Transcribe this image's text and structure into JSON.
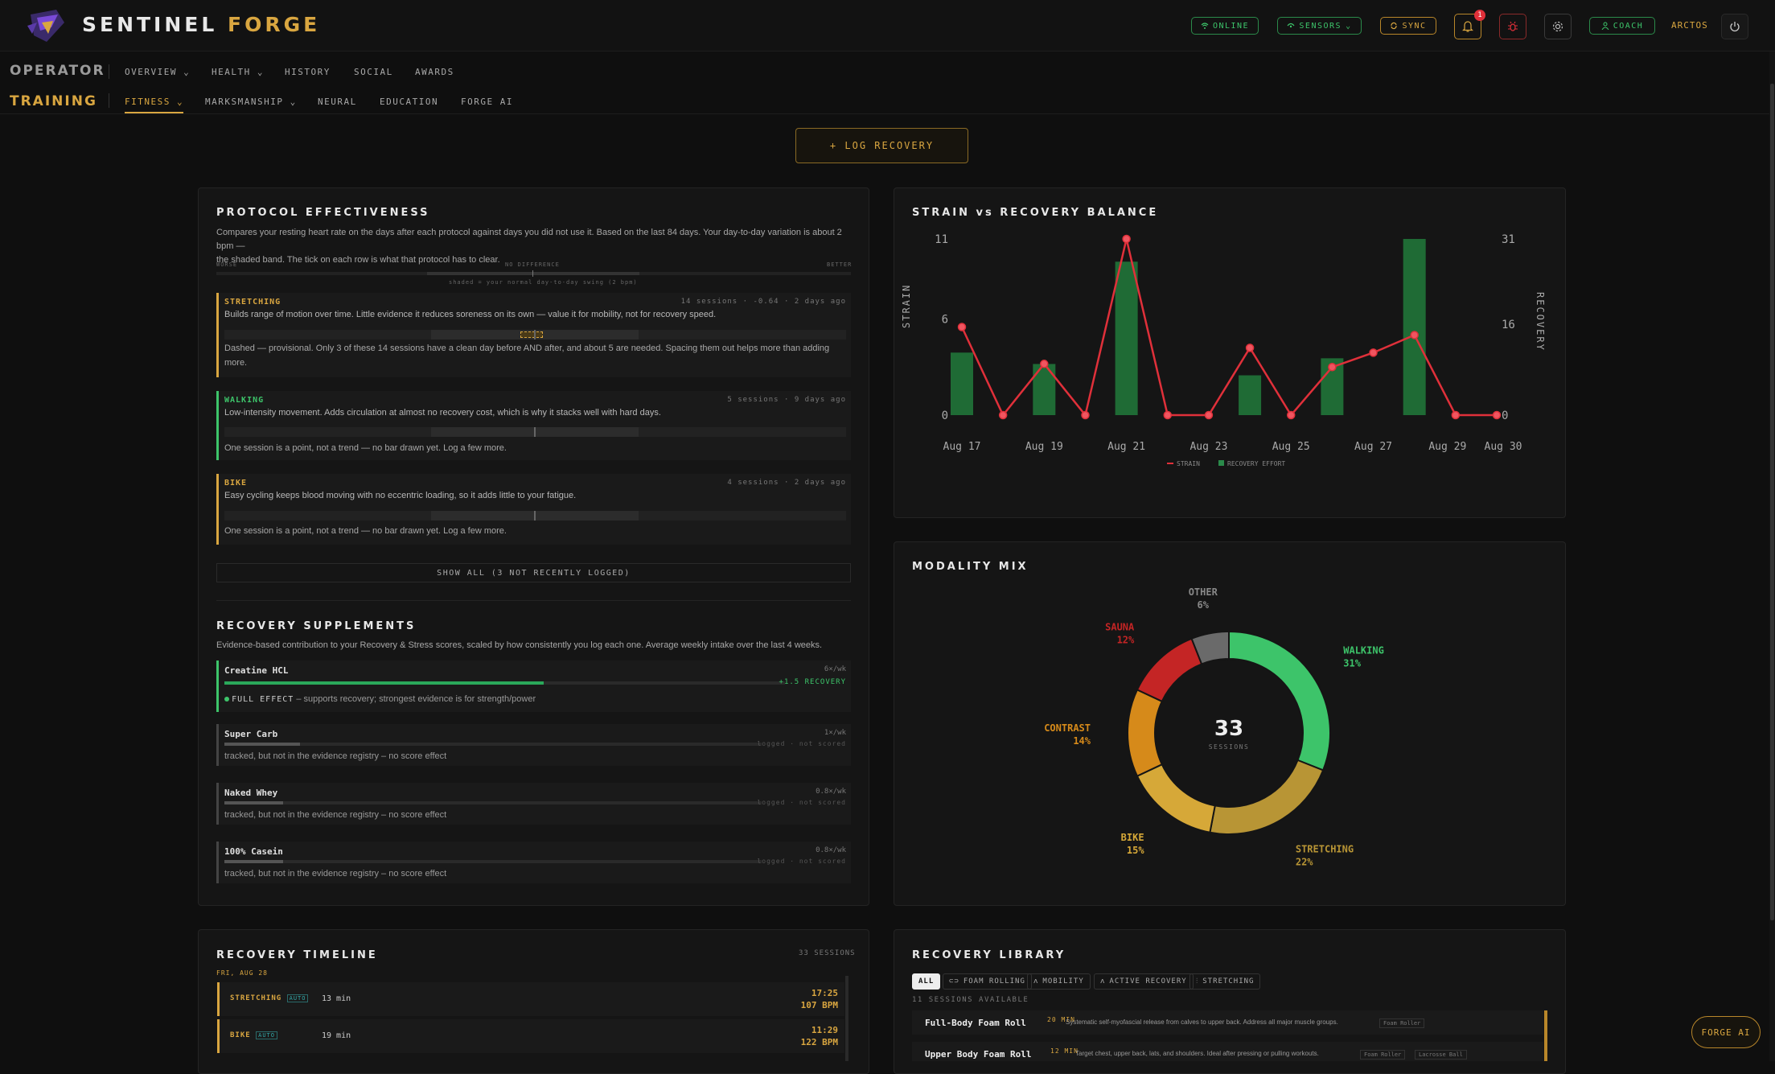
{
  "app": {
    "name_a": "SENTINEL",
    "name_b": "FORGE"
  },
  "status": {
    "online": "ONLINE",
    "sensors": "SENSORS",
    "sync": "SYNC",
    "notif_count": "1",
    "coach": "COACH",
    "user": "ARCTOS"
  },
  "nav1": {
    "section": "OPERATOR",
    "items": [
      "OVERVIEW",
      "HEALTH",
      "HISTORY",
      "SOCIAL",
      "AWARDS"
    ]
  },
  "nav2": {
    "section": "TRAINING",
    "items": [
      "FITNESS",
      "MARKSMANSHIP",
      "NEURAL",
      "EDUCATION",
      "FORGE AI"
    ]
  },
  "log_button": "+ LOG RECOVERY",
  "protocol": {
    "title": "PROTOCOL EFFECTIVENESS",
    "desc1": "Compares your resting heart rate on the days after each protocol against days you did not use it. Based on the last 84 days. Your day-to-day variation is about 2 bpm —",
    "desc2": "the shaded band. The tick on each row is what that protocol has to clear.",
    "scale_worse": "WORSE",
    "scale_mid": "NO DIFFERENCE",
    "scale_better": "BETTER",
    "scale_note": "shaded = your normal day-to-day swing (2 bpm)",
    "cards": [
      {
        "name": "STRETCHING",
        "meta": "14 sessions · -0.64 · 2 days ago",
        "desc": "Builds range of motion over time. Little evidence it reduces soreness on its own — value it for mobility, not for recovery speed.",
        "note": "Dashed — provisional. Only 3 of these 14 sessions have a clean day before AND after, and about 5 are needed. Spacing them out helps more than adding",
        "note2": "more."
      },
      {
        "name": "WALKING",
        "meta": "5 sessions · 9 days ago",
        "desc": "Low-intensity movement. Adds circulation at almost no recovery cost, which is why it stacks well with hard days.",
        "note": "One session is a point, not a trend — no bar drawn yet. Log a few more."
      },
      {
        "name": "BIKE",
        "meta": "4 sessions · 2 days ago",
        "desc": "Easy cycling keeps blood moving with no eccentric loading, so it adds little to your fatigue.",
        "note": "One session is a point, not a trend — no bar drawn yet. Log a few more."
      }
    ],
    "show_all": "SHOW ALL (3 NOT RECENTLY LOGGED)"
  },
  "supplements": {
    "title": "RECOVERY SUPPLEMENTS",
    "desc": "Evidence-based contribution to your Recovery & Stress scores, scaled by how consistently you log each one. Average weekly intake over the last 4 weeks.",
    "items": [
      {
        "name": "Creatine HCL",
        "freq": "6×/wk",
        "effect": "+1.5 RECOVERY",
        "fill": 0.57,
        "tag": "FULL EFFECT",
        "desc": " – supports recovery; strongest evidence is for strength/power"
      },
      {
        "name": "Super Carb",
        "freq": "1×/wk",
        "status": "logged · not scored",
        "fill": 0.14,
        "desc": "tracked, but not in the evidence registry – no score effect"
      },
      {
        "name": "Naked Whey",
        "freq": "0.8×/wk",
        "status": "logged · not scored",
        "fill": 0.11,
        "desc": "tracked, but not in the evidence registry – no score effect"
      },
      {
        "name": "100% Casein",
        "freq": "0.8×/wk",
        "status": "logged · not scored",
        "fill": 0.11,
        "desc": "tracked, but not in the evidence registry – no score effect"
      }
    ]
  },
  "strain_chart": {
    "title": "STRAIN vs RECOVERY BALANCE",
    "ylabel_left": "STRAIN",
    "ylabel_right": "RECOVERY",
    "legend": [
      "STRAIN",
      "RECOVERY EFFORT"
    ]
  },
  "modality": {
    "title": "MODALITY MIX",
    "total": "33",
    "total_label": "SESSIONS"
  },
  "timeline": {
    "title": "RECOVERY TIMELINE",
    "count": "33 SESSIONS",
    "date": "FRI, AUG 28",
    "items": [
      {
        "name": "STRETCHING",
        "tag": "AUTO",
        "dur": "13 min",
        "time": "17:25",
        "bpm": "107 BPM"
      },
      {
        "name": "BIKE",
        "tag": "AUTO",
        "dur": "19 min",
        "time": "11:29",
        "bpm": "122 BPM"
      }
    ]
  },
  "library": {
    "title": "RECOVERY LIBRARY",
    "tabs": [
      "ALL",
      "FOAM ROLLING",
      "MOBILITY",
      "ACTIVE RECOVERY",
      "STRETCHING"
    ],
    "count": "11 SESSIONS AVAILABLE",
    "items": [
      {
        "name": "Full-Body Foam Roll",
        "dur": "20 MIN",
        "desc": "Systematic self-myofascial release from calves to upper back. Address all major muscle groups.",
        "tag": "Foam Roller"
      },
      {
        "name": "Upper Body Foam Roll",
        "dur": "12 MIN",
        "desc": "Target chest, upper back, lats, and shoulders. Ideal after pressing or pulling workouts.",
        "tag": "Foam Roller",
        "tag2": "Lacrosse Ball"
      }
    ]
  },
  "forge_ai_button": "FORGE AI",
  "chart_data": [
    {
      "type": "bar+line",
      "title": "STRAIN vs RECOVERY BALANCE",
      "x": [
        "Aug 17",
        "Aug 18",
        "Aug 19",
        "Aug 20",
        "Aug 21",
        "Aug 22",
        "Aug 23",
        "Aug 24",
        "Aug 25",
        "Aug 26",
        "Aug 27",
        "Aug 28",
        "Aug 29",
        "Aug 30"
      ],
      "xticks": [
        "Aug 17",
        "Aug 19",
        "Aug 21",
        "Aug 23",
        "Aug 25",
        "Aug 27",
        "Aug 29",
        "Aug 30"
      ],
      "ylabel": "STRAIN",
      "y2label": "RECOVERY",
      "ylim": [
        0,
        11
      ],
      "y2lim": [
        0,
        31
      ],
      "yticks": [
        0,
        6,
        11
      ],
      "y2ticks": [
        0,
        16,
        31
      ],
      "series": [
        {
          "name": "STRAIN",
          "type": "line",
          "axis": "left",
          "color": "#e0303a",
          "values": [
            5.5,
            0,
            3.2,
            0,
            11,
            0,
            0,
            4.2,
            0,
            3,
            3.9,
            5,
            0,
            0
          ]
        },
        {
          "name": "RECOVERY EFFORT",
          "type": "bar",
          "axis": "right",
          "color": "#1f6b35",
          "values": [
            11,
            0,
            9,
            0,
            27,
            0,
            0,
            7,
            0,
            10,
            0,
            31,
            0,
            0
          ]
        }
      ]
    },
    {
      "type": "pie",
      "title": "MODALITY MIX",
      "series": [
        {
          "label": "WALKING",
          "pct": "31%",
          "value": 31,
          "color": "#3dc46a"
        },
        {
          "label": "STRETCHING",
          "pct": "22%",
          "value": 22,
          "color": "#b89535"
        },
        {
          "label": "BIKE",
          "pct": "15%",
          "value": 15,
          "color": "#d6a838"
        },
        {
          "label": "CONTRAST",
          "pct": "14%",
          "value": 14,
          "color": "#d68a1a"
        },
        {
          "label": "SAUNA",
          "pct": "12%",
          "value": 12,
          "color": "#c42525"
        },
        {
          "label": "OTHER",
          "pct": "6%",
          "value": 6,
          "color": "#6a6a6a"
        }
      ]
    }
  ]
}
